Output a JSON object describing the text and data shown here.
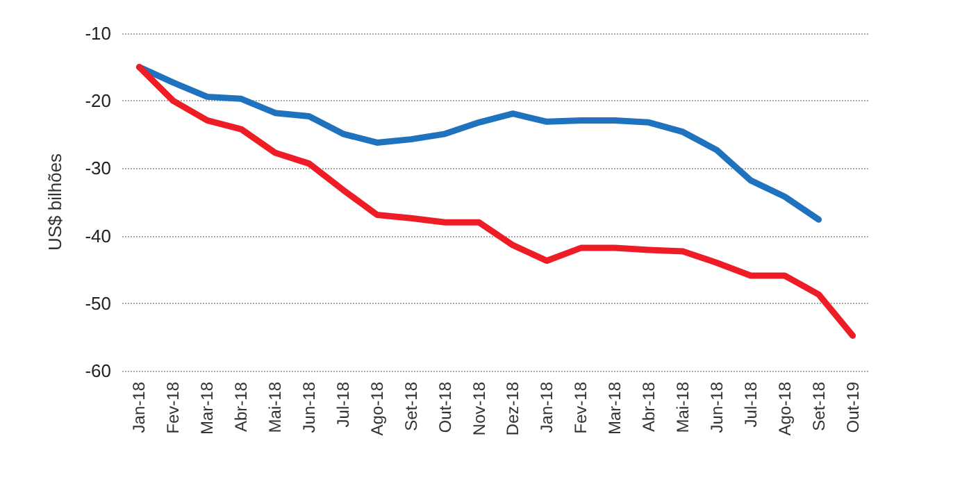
{
  "chart_data": {
    "type": "line",
    "ylabel": "US$ bilhões",
    "categories": [
      "Jan-18",
      "Fev-18",
      "Mar-18",
      "Abr-18",
      "Mai-18",
      "Jun-18",
      "Jul-18",
      "Ago-18",
      "Set-18",
      "Out-18",
      "Nov-18",
      "Dez-18",
      "Jan-18",
      "Fev-18",
      "Mar-18",
      "Abr-18",
      "Mai-18",
      "Jun-18",
      "Jul-18",
      "Ago-18",
      "Set-18",
      "Out-19"
    ],
    "series": [
      {
        "color": "#1f72bd",
        "values": [
          -15,
          -17.3,
          -19.4,
          -19.7,
          -21.8,
          -22.3,
          -24.9,
          -26.2,
          -25.7,
          -24.9,
          -23.2,
          -21.9,
          -23.1,
          -22.9,
          -22.9,
          -23.2,
          -24.6,
          -27.3,
          -31.8,
          -34.2,
          -37.6,
          null
        ]
      },
      {
        "color": "#ee1c25",
        "values": [
          -15,
          -20,
          -22.9,
          -24.2,
          -27.7,
          -29.3,
          -33.2,
          -36.9,
          -37.4,
          -38,
          -38,
          -41.4,
          -43.7,
          -41.8,
          -41.8,
          -42.1,
          -42.3,
          -44,
          -45.9,
          -45.9,
          -48.7,
          -54.8
        ]
      }
    ],
    "ylim": [
      -60,
      -10
    ],
    "yticks": [
      -60,
      -50,
      -40,
      -30,
      -20,
      -10
    ],
    "grid": "y",
    "marker": "none",
    "line_style": "solid"
  }
}
